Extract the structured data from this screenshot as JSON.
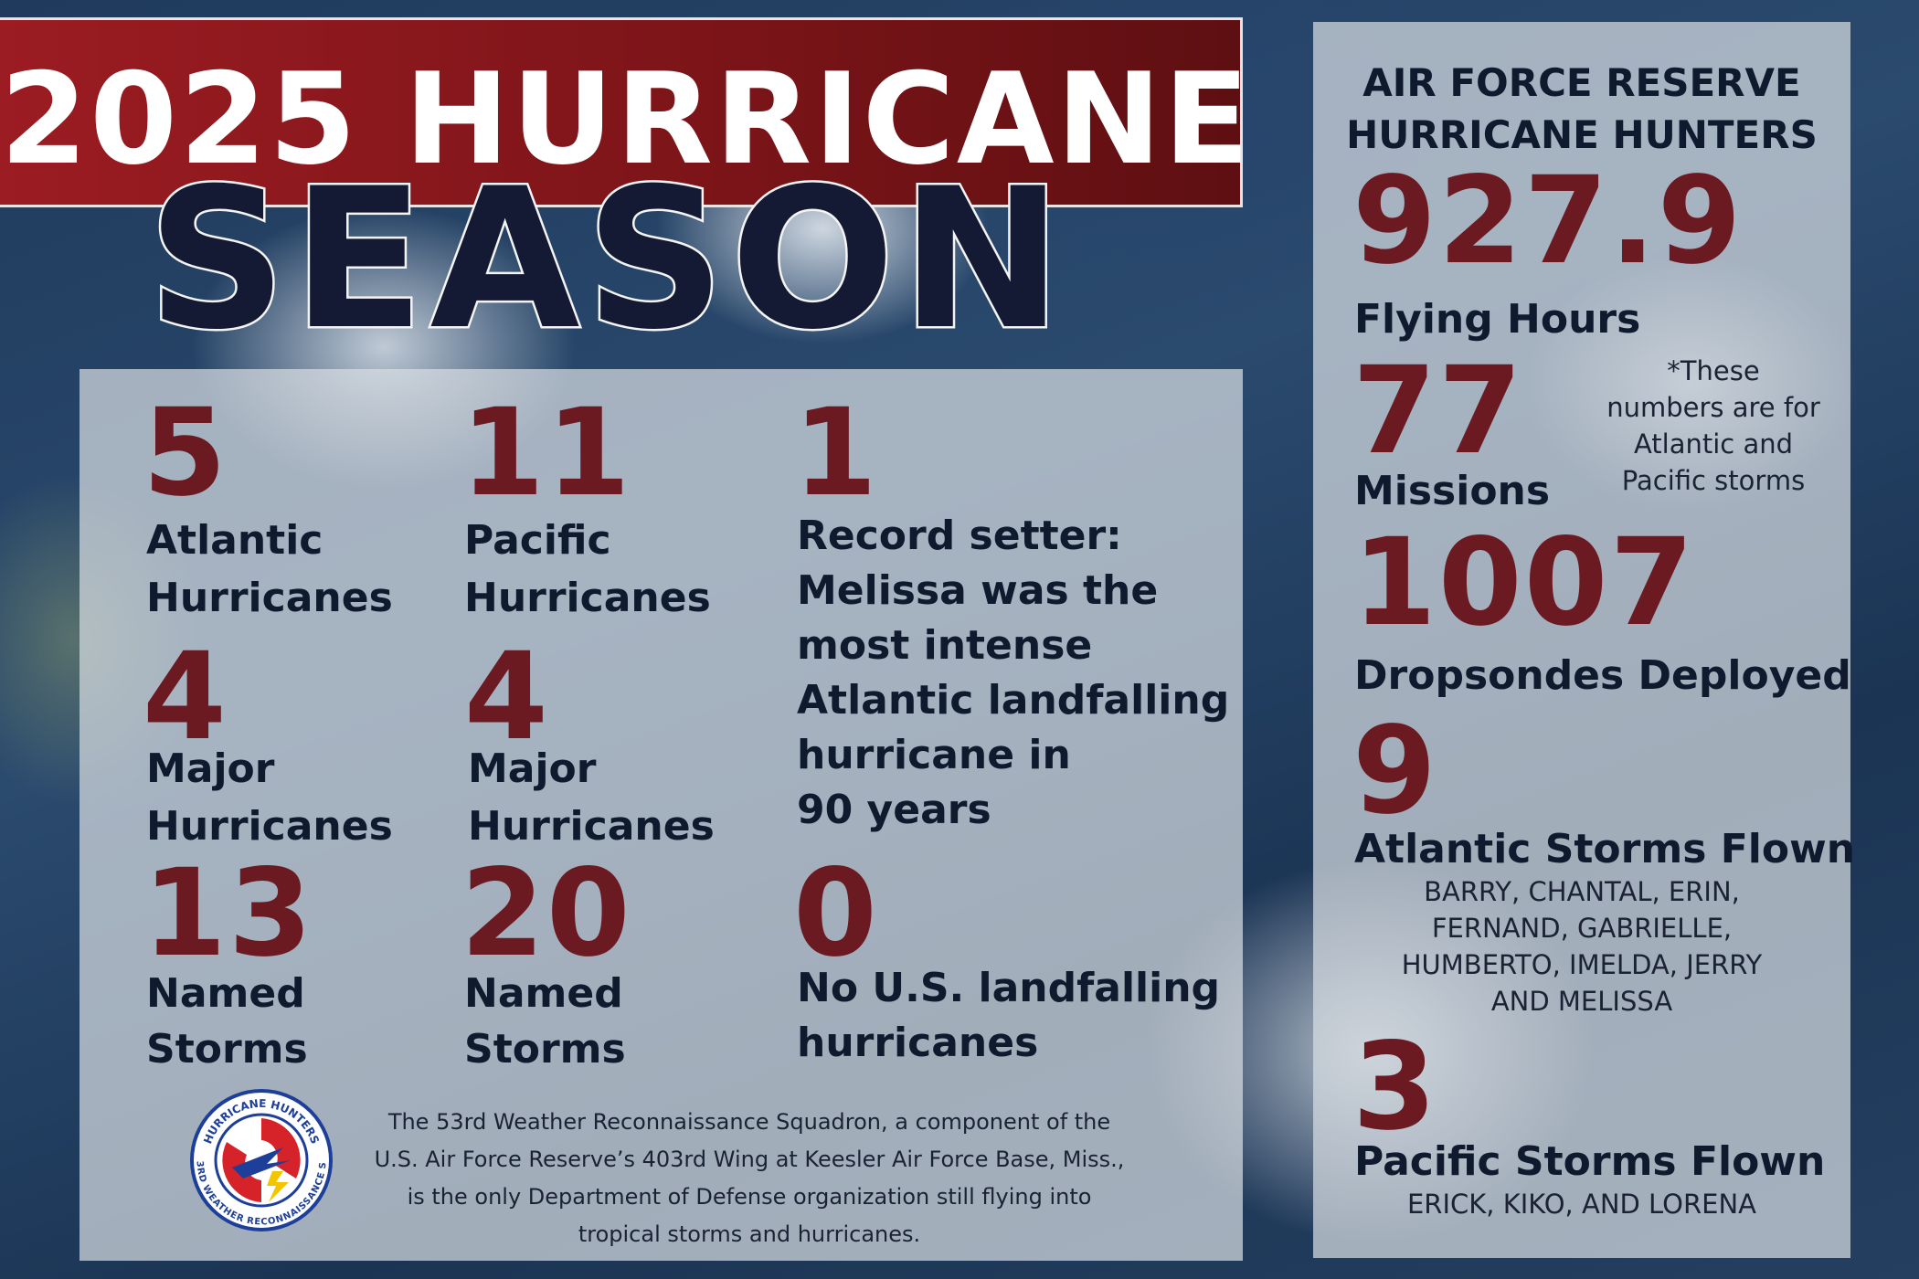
{
  "header": {
    "title_line1": "2025 HURRICANE",
    "title_line2": "SEASON"
  },
  "left_stats": [
    {
      "number": "5",
      "lines": [
        "Atlantic",
        "Hurricanes"
      ]
    },
    {
      "number": "11",
      "lines": [
        "Pacific",
        "Hurricanes"
      ]
    },
    {
      "number": "4",
      "lines": [
        "Major",
        "Hurricanes"
      ]
    },
    {
      "number": "4",
      "lines": [
        "Major",
        "Hurricanes"
      ]
    },
    {
      "number": "13",
      "lines": [
        "Named",
        "Storms"
      ]
    },
    {
      "number": "20",
      "lines": [
        "Named",
        "Storms"
      ]
    },
    {
      "number": "1",
      "lines": [
        "Record setter:",
        "Melissa was the",
        "most intense",
        "Atlantic landfalling",
        "hurricane in",
        "90 years"
      ]
    },
    {
      "number": "0",
      "lines": [
        "No U.S. landfalling",
        "hurricanes"
      ]
    }
  ],
  "logo": {
    "top_text": "HURRICANE HUNTERS",
    "bottom_text": "53RD WEATHER RECONNAISSANCE SQ"
  },
  "footer": {
    "lines": [
      "The 53rd Weather Reconnaissance Squadron, a component of the",
      "U.S. Air Force Reserve’s 403rd Wing at Keesler Air Force Base, Miss.,",
      "is the only Department of Defense organization still flying into",
      "tropical storms and hurricanes."
    ]
  },
  "right_panel": {
    "title_lines": [
      "AIR FORCE RESERVE",
      "HURRICANE HUNTERS"
    ],
    "stats": [
      {
        "number": "927.9",
        "label": "Flying Hours"
      },
      {
        "number": "77",
        "label": "Missions"
      },
      {
        "number": "1007",
        "label": "Dropsondes Deployed"
      },
      {
        "number": "9",
        "label": "Atlantic Storms Flown",
        "names": [
          "BARRY, CHANTAL, ERIN,",
          "FERNAND, GABRIELLE,",
          "HUMBERTO, IMELDA, JERRY",
          "AND MELISSA"
        ]
      },
      {
        "number": "3",
        "label": "Pacific Storms Flown",
        "names": [
          "ERICK, KIKO, AND LORENA"
        ]
      }
    ],
    "note_lines": [
      "*These",
      "numbers are for",
      "Atlantic and",
      "Pacific storms"
    ]
  }
}
